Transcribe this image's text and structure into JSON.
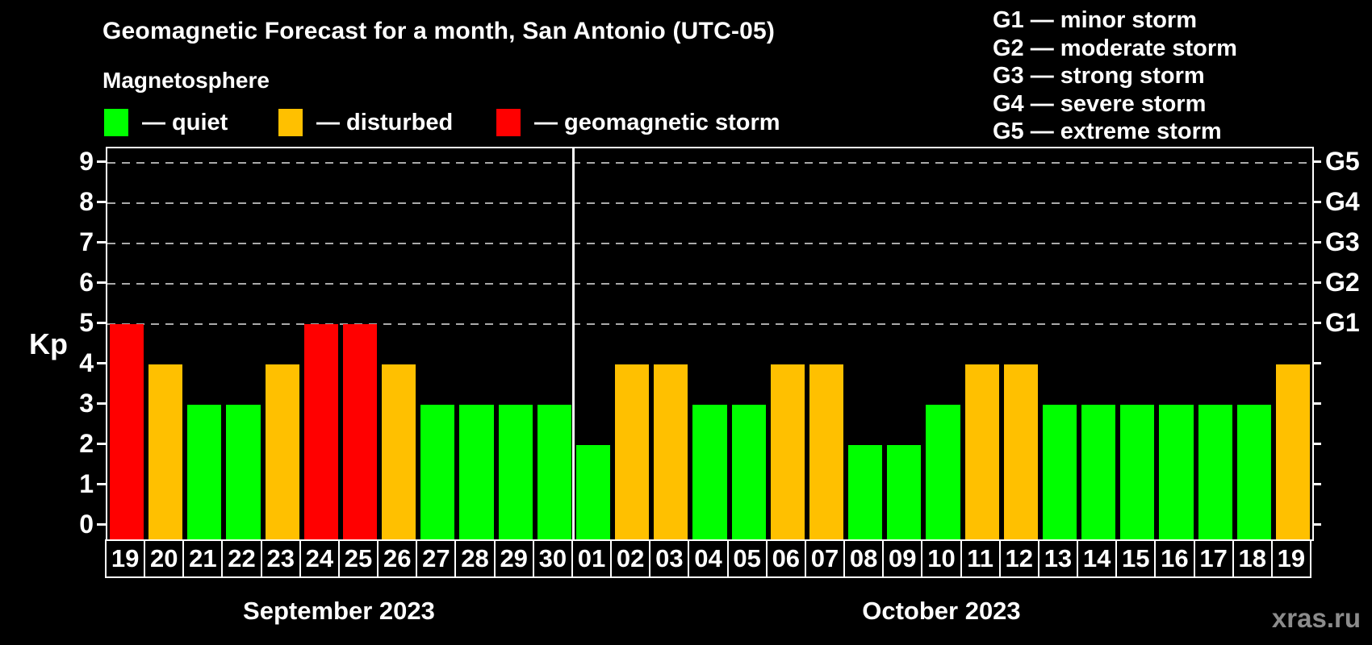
{
  "title": "Geomagnetic Forecast for a month, San Antonio (UTC-05)",
  "subtitle": "Magnetosphere",
  "status_legend": [
    {
      "status": "quiet",
      "label": "— quiet"
    },
    {
      "status": "disturbed",
      "label": "— disturbed"
    },
    {
      "status": "storm",
      "label": "— geomagnetic storm"
    }
  ],
  "g_scale_legend": [
    "G1 — minor storm",
    "G2 — moderate storm",
    "G3 — strong storm",
    "G4 — severe storm",
    "G5 — extreme storm"
  ],
  "watermark": "xras.ru",
  "colors": {
    "quiet": "#00ff00",
    "disturbed": "#ffc000",
    "storm": "#ff0000",
    "background": "#000000",
    "grid": "#aaaaaa",
    "text": "#ffffff",
    "watermark": "#8c8c8c"
  },
  "chart_data": {
    "type": "bar",
    "title": "Geomagnetic Forecast for a month, San Antonio (UTC-05)",
    "ylabel": "Kp",
    "y_ticks": [
      0,
      1,
      2,
      3,
      4,
      5,
      6,
      7,
      8,
      9
    ],
    "ylim": [
      -0.35,
      9.35
    ],
    "grid_levels": [
      5,
      6,
      7,
      8,
      9
    ],
    "grid_on": true,
    "legend_position": "top",
    "right_axis": [
      {
        "kp": 5,
        "label": "G1"
      },
      {
        "kp": 6,
        "label": "G2"
      },
      {
        "kp": 7,
        "label": "G3"
      },
      {
        "kp": 8,
        "label": "G4"
      },
      {
        "kp": 9,
        "label": "G5"
      }
    ],
    "months": [
      {
        "label": "September 2023",
        "n_days": 12
      },
      {
        "label": "October 2023",
        "n_days": 19
      }
    ],
    "categories": [
      "19",
      "20",
      "21",
      "22",
      "23",
      "24",
      "25",
      "26",
      "27",
      "28",
      "29",
      "30",
      "01",
      "02",
      "03",
      "04",
      "05",
      "06",
      "07",
      "08",
      "09",
      "10",
      "11",
      "12",
      "13",
      "14",
      "15",
      "16",
      "17",
      "18",
      "19"
    ],
    "values": [
      5,
      4,
      3,
      3,
      4,
      5,
      5,
      4,
      3,
      3,
      3,
      3,
      2,
      4,
      4,
      3,
      3,
      4,
      4,
      2,
      2,
      3,
      4,
      4,
      3,
      3,
      3,
      3,
      3,
      3,
      4
    ],
    "statuses": [
      "storm",
      "disturbed",
      "quiet",
      "quiet",
      "disturbed",
      "storm",
      "storm",
      "disturbed",
      "quiet",
      "quiet",
      "quiet",
      "quiet",
      "quiet",
      "disturbed",
      "disturbed",
      "quiet",
      "quiet",
      "disturbed",
      "disturbed",
      "quiet",
      "quiet",
      "quiet",
      "disturbed",
      "disturbed",
      "quiet",
      "quiet",
      "quiet",
      "quiet",
      "quiet",
      "quiet",
      "disturbed"
    ]
  }
}
